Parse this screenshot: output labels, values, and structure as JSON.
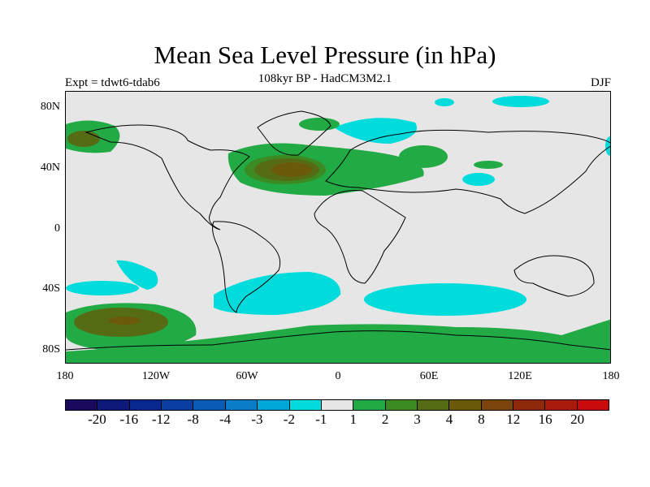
{
  "title": "Mean Sea Level Pressure (in hPa)",
  "subtitle": "108kyr BP - HadCM3M2.1",
  "experiment": "Expt = tdwt6-tdab6",
  "season": "DJF",
  "map": {
    "lat_labels": [
      "80N",
      "40N",
      "0",
      "40S",
      "80S"
    ],
    "lon_labels": [
      "180",
      "120W",
      "60W",
      "0",
      "60E",
      "120E",
      "180"
    ]
  },
  "legend": {
    "colors": [
      "#1a0a5e",
      "#0d1a78",
      "#08288f",
      "#0a3ea3",
      "#0a5bb5",
      "#0a7cc8",
      "#00a6d6",
      "#00dcdc",
      "#e6e6e6",
      "#22aa44",
      "#3c8a22",
      "#556b14",
      "#6b5a0a",
      "#7a440a",
      "#8c2a0a",
      "#a81a0a",
      "#c80a0a"
    ],
    "labels": [
      "-20",
      "-16",
      "-12",
      "-8",
      "-4",
      "-3",
      "-2",
      "-1",
      "1",
      "2",
      "3",
      "4",
      "8",
      "12",
      "16",
      "20"
    ]
  }
}
